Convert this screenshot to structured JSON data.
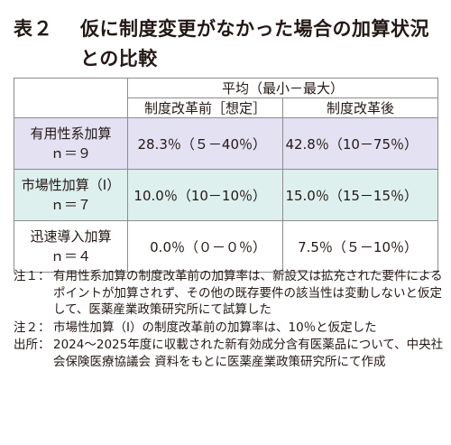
{
  "title": {
    "label": "表２",
    "text": "仮に制度変更がなかった場合の加算状況との比較"
  },
  "table": {
    "header_avg": "平均（最小－最大）",
    "header_col1": "制度改革前［想定］",
    "header_col2": "制度改革後",
    "rows": [
      {
        "label_line1": "有用性系加算",
        "label_line2": "ｎ＝９",
        "before": "28.3％（５－40％）",
        "after": "42.8％（10－75％）"
      },
      {
        "label_line1": "市場性加算（Ⅰ）",
        "label_line2": "ｎ＝７",
        "before": "10.0％（10－10％）",
        "after": "15.0％（15－15％）"
      },
      {
        "label_line1": "迅速導入加算",
        "label_line2": "ｎ＝４",
        "before": "0.0％（０－０％）",
        "after": "7.5％（５－10％）"
      }
    ],
    "row_colors": [
      "#e3e1f2",
      "#ddf0ee",
      "#ffffff"
    ]
  },
  "notes": [
    {
      "label": "注１：",
      "text": "有用性系加算の制度改革前の加算率は、新設又は拡充された要件によるポイントが加算されず、その他の既存要件の該当性は変動しないと仮定して、医薬産業政策研究所にて試算した"
    },
    {
      "label": "注２：",
      "text": "市場性加算（Ⅰ）の制度改革前の加算率は、10％と仮定した"
    },
    {
      "label": "出所：",
      "text": "2024～2025年度に収載された新有効成分含有医薬品について、中央社会保険医療協議会 資料をもとに医薬産業政策研究所にて作成"
    }
  ]
}
